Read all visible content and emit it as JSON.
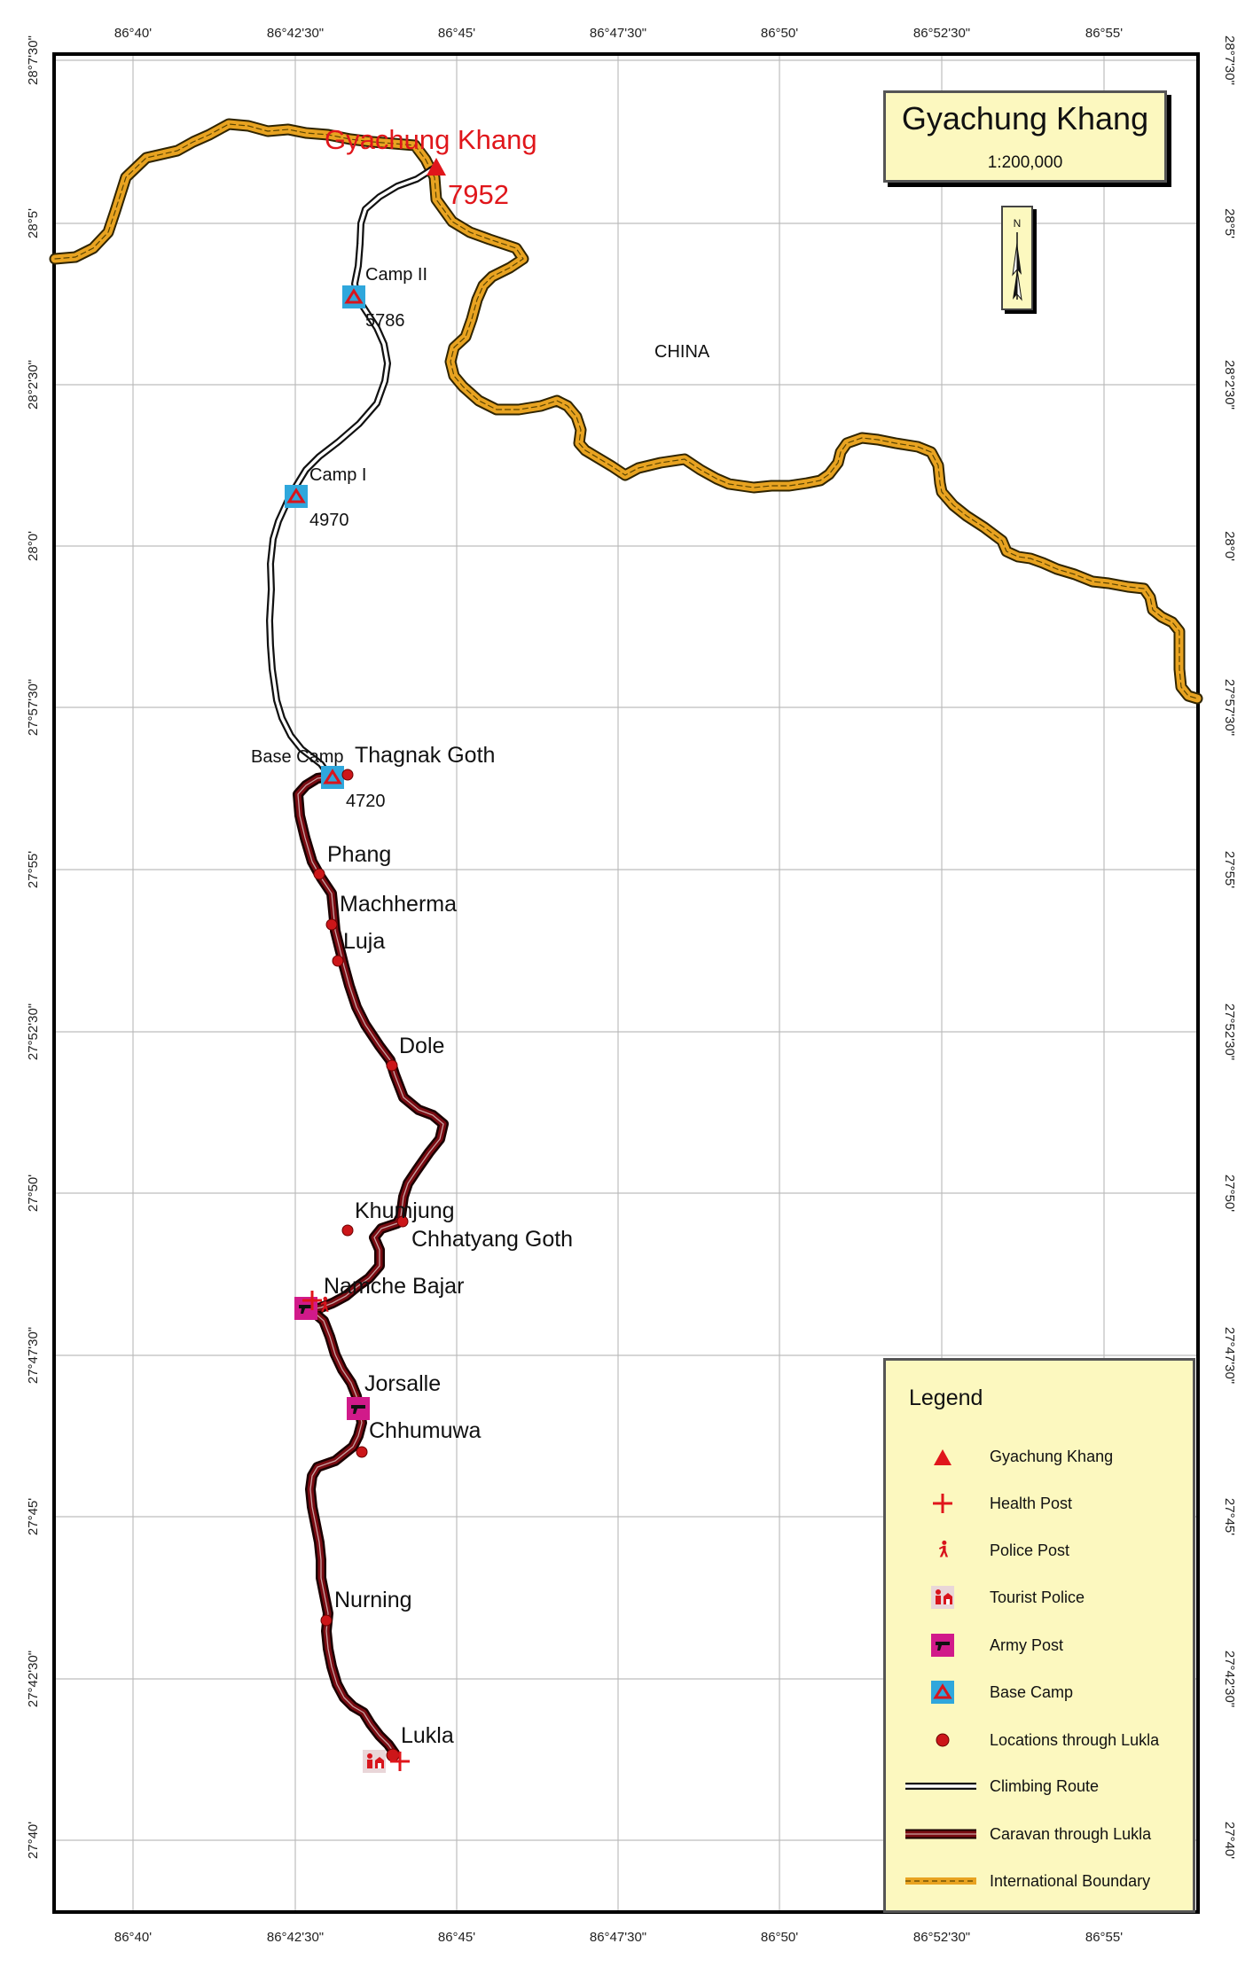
{
  "map": {
    "title": "Gyachung Khang",
    "scale": "1:200,000",
    "north_label": "N",
    "country_label": "CHINA",
    "longitude_labels": [
      "86°40'",
      "86°42'30\"",
      "86°45'",
      "86°47'30\"",
      "86°50'",
      "86°52'30\"",
      "86°55'"
    ],
    "latitude_labels": [
      "28°7'30\"",
      "28°5'",
      "28°2'30\"",
      "28°0'",
      "27°57'30\"",
      "27°55'",
      "27°52'30\"",
      "27°50'",
      "27°47'30\"",
      "27°45'",
      "27°42'30\"",
      "27°40'"
    ],
    "peak": {
      "name": "Gyachung Khang",
      "elevation": "7952"
    },
    "camps": [
      {
        "name": "Camp II",
        "elevation": "5786"
      },
      {
        "name": "Camp I",
        "elevation": "4970"
      },
      {
        "name": "Base Camp",
        "elevation": "4720"
      }
    ],
    "locations": [
      "Thagnak Goth",
      "Phang",
      "Machherma",
      "Luja",
      "Dole",
      "Khumjung",
      "Chhatyang Goth",
      "Namche Bajar",
      "Jorsalle",
      "Chhumuwa",
      "Nurning",
      "Lukla"
    ]
  },
  "legend": {
    "title": "Legend",
    "items": [
      {
        "label": "Gyachung Khang",
        "icon": "red-triangle-icon"
      },
      {
        "label": "Health Post",
        "icon": "red-cross-icon"
      },
      {
        "label": "Police Post",
        "icon": "police-figure-icon"
      },
      {
        "label": "Tourist Police",
        "icon": "tourist-police-icon"
      },
      {
        "label": "Army Post",
        "icon": "army-gun-icon"
      },
      {
        "label": "Base Camp",
        "icon": "camp-tent-icon"
      },
      {
        "label": "Locations through Lukla",
        "icon": "red-dot-icon"
      },
      {
        "label": "Climbing Route",
        "icon": "climbing-route-line-icon"
      },
      {
        "label": "Caravan through Lukla",
        "icon": "caravan-route-line-icon"
      },
      {
        "label": "International Boundary",
        "icon": "boundary-line-icon"
      }
    ]
  },
  "colors": {
    "boundary": "#e8a321",
    "caravan": "#7a0b12",
    "peak": "#e0161b",
    "camp": "#2fa7dc",
    "army": "#d11a8a",
    "panel": "#fcf8bf"
  }
}
